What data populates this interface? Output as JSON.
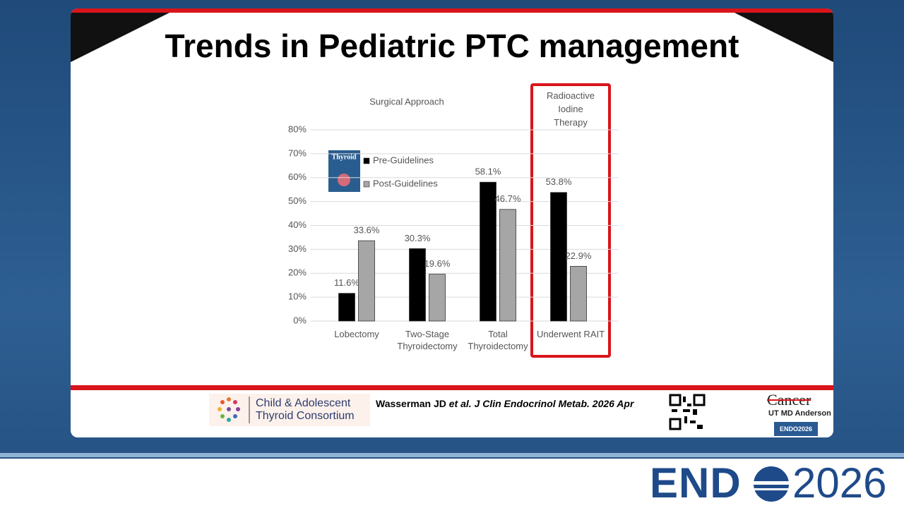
{
  "slide_title": "Trends in Pediatric PTC management",
  "chart_data": {
    "type": "bar",
    "title": "Surgical Approach",
    "annotation": "Radioactive Iodine Therapy",
    "categories": [
      "Lobectomy",
      "Two-Stage Thyroidectomy",
      "Total Thyroidectomy",
      "Underwent RAIT"
    ],
    "series": [
      {
        "name": "Pre-Guidelines",
        "color": "#000000",
        "values": [
          11.6,
          30.3,
          58.1,
          53.8
        ],
        "value_labels": [
          "11.6%",
          "30.3%",
          "58.1%",
          "53.8%"
        ]
      },
      {
        "name": "Post-Guidelines",
        "color": "#a6a6a6",
        "values": [
          33.6,
          19.6,
          46.7,
          22.9
        ],
        "value_labels": [
          "33.6%",
          "19.6%",
          "46.7%",
          "22.9%"
        ]
      }
    ],
    "ylim": [
      0,
      80
    ],
    "yticks": [
      {
        "value": 0,
        "label": "0%"
      },
      {
        "value": 10,
        "label": "10%"
      },
      {
        "value": 20,
        "label": "20%"
      },
      {
        "value": 30,
        "label": "30%"
      },
      {
        "value": 40,
        "label": "40%"
      },
      {
        "value": 50,
        "label": "50%"
      },
      {
        "value": 60,
        "label": "60%"
      },
      {
        "value": 70,
        "label": "70%"
      },
      {
        "value": 80,
        "label": "80%"
      }
    ],
    "grid": true,
    "journal_cover": "Thyroid"
  },
  "footer": {
    "consortium": "Child & Adolescent Thyroid Consortium",
    "citation": {
      "authors": "Wasserman JD",
      "etal": "et al.",
      "journal": "J Clin Endocrinol Metab. 2026 Apr"
    },
    "cancer": "Cancer",
    "md_anderson": "UT MD Anderson",
    "endo_badge": "ENDO2026"
  },
  "banner": {
    "left": "END",
    "right": "2026"
  }
}
